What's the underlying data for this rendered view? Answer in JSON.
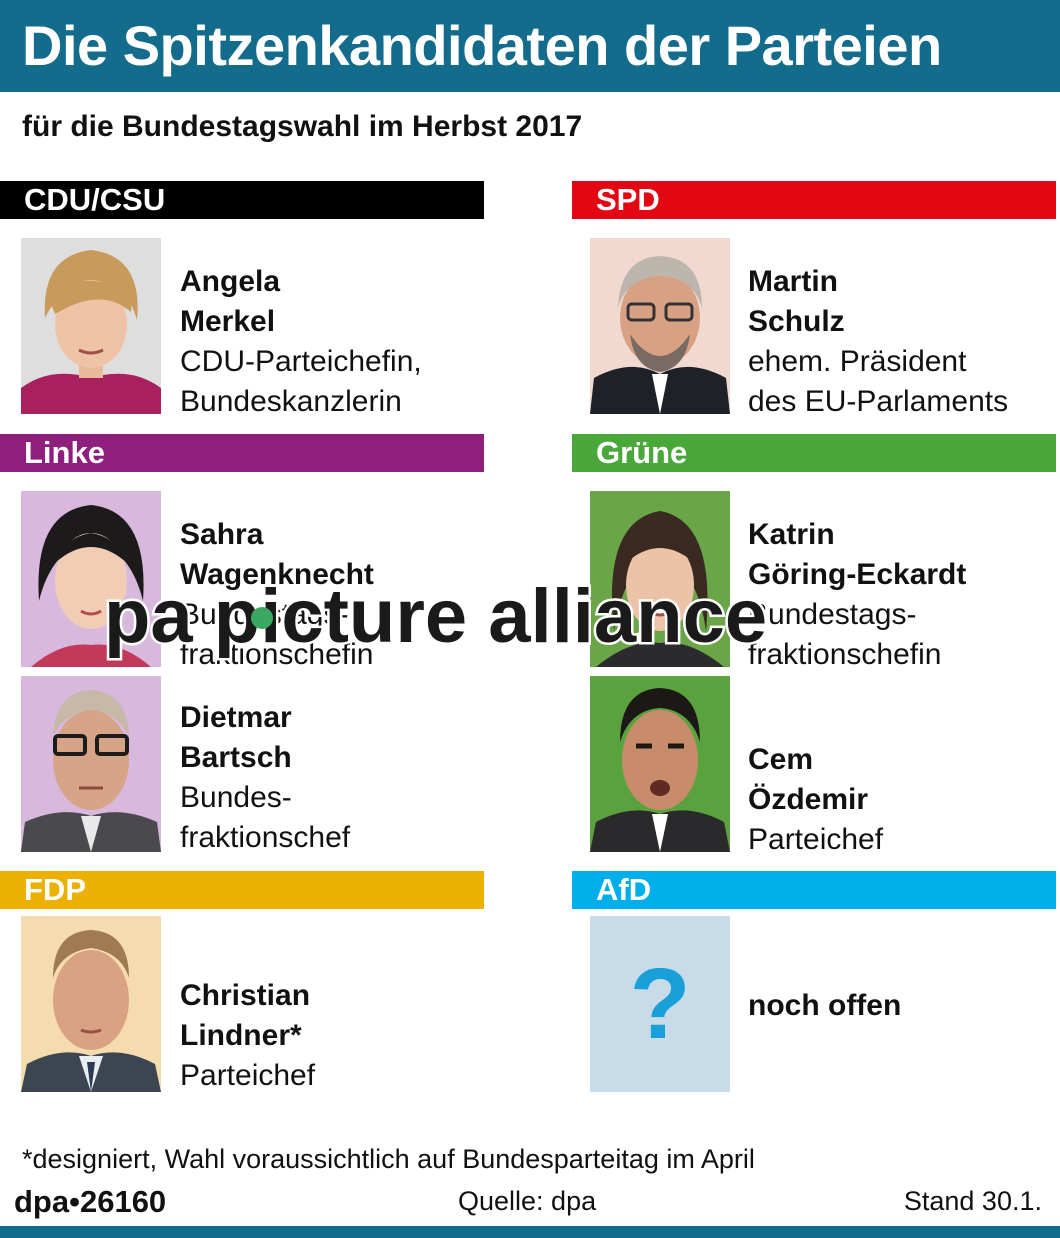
{
  "title": "Die Spitzenkandidaten der Parteien",
  "subtitle": "für die Bundestagswahl im Herbst 2017",
  "parties": {
    "cdu": {
      "label": "CDU/CSU",
      "color": "#000000"
    },
    "spd": {
      "label": "SPD",
      "color": "#e30613"
    },
    "linke": {
      "label": "Linke",
      "color": "#8e1f7c"
    },
    "gruene": {
      "label": "Grüne",
      "color": "#4aa83b"
    },
    "fdp": {
      "label": "FDP",
      "color": "#ecb100"
    },
    "afd": {
      "label": "AfD",
      "color": "#00aee9"
    }
  },
  "candidates": {
    "merkel": {
      "first": "Angela",
      "last": "Merkel",
      "role1": "CDU-Parteichefin,",
      "role2": "Bundeskanzlerin"
    },
    "schulz": {
      "first": "Martin",
      "last": "Schulz",
      "role1": "ehem. Präsident",
      "role2": "des EU-Parlaments"
    },
    "wagenknecht": {
      "first": "Sahra",
      "last": "Wagenknecht",
      "role1": "Bundestags-",
      "role2": "fraktionschefin"
    },
    "goering": {
      "first": "Katrin",
      "last": "Göring-Eckardt",
      "role1": "Bundestags-",
      "role2": "fraktionschefin"
    },
    "bartsch": {
      "first": "Dietmar",
      "last": "Bartsch",
      "role1": "Bundes-",
      "role2": "fraktionschef"
    },
    "oezdemir": {
      "first": "Cem",
      "last": "Özdemir",
      "role1": "Parteichef"
    },
    "lindner": {
      "first": "Christian",
      "last": "Lindner*",
      "role1": "Parteichef"
    },
    "afd": {
      "text": "noch offen",
      "placeholder": "?"
    }
  },
  "footnote": "*designiert, Wahl voraussichtlich auf Bundesparteitag im April",
  "footer": {
    "id": "dpa•26160",
    "source": "Quelle: dpa",
    "date": "Stand 30.1."
  },
  "watermark": "pa picture alliance"
}
